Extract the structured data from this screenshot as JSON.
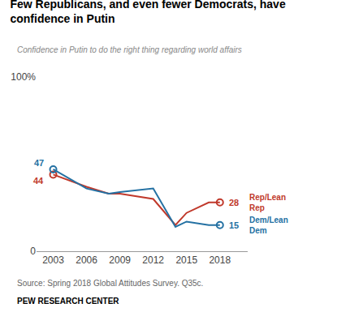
{
  "chart_data": {
    "type": "line",
    "title": "Few Republicans, and even fewer Democrats, have\nconfidence in Putin",
    "subtitle": "Confidence in Putin to do the right thing regarding world affairs",
    "source": "Source: Spring 2018 Global Attitudes Survey. Q35c.",
    "footer": "PEW RESEARCH CENTER",
    "x": [
      2003,
      2006,
      2008,
      2009,
      2012,
      2014,
      2015,
      2017,
      2018
    ],
    "series": [
      {
        "name": "Rep/Lean\nRep",
        "color": "#C0392B",
        "marker": "circle-open",
        "values": [
          44,
          37,
          33,
          33,
          30,
          15,
          22,
          28,
          28
        ]
      },
      {
        "name": "Dem/Lean\nDem",
        "color": "#2471A3",
        "marker": "circle-open",
        "values": [
          47,
          36,
          33,
          34,
          36,
          14,
          17,
          15,
          15
        ]
      }
    ],
    "annotations": [
      {
        "text": "47",
        "series": "Dem/Lean\nDem",
        "x": 2003,
        "y": 47
      },
      {
        "text": "44",
        "series": "Rep/Lean\nRep",
        "x": 2003,
        "y": 44
      },
      {
        "text": "28",
        "series": "Rep/Lean\nRep",
        "x": 2018,
        "y": 28
      },
      {
        "text": "15",
        "series": "Dem/Lean\nDem",
        "x": 2018,
        "y": 15
      }
    ],
    "xlim": [
      2001.5,
      2020.5
    ],
    "xticks": [
      2003,
      2006,
      2009,
      2012,
      2015,
      2018
    ],
    "ylim": [
      0,
      100
    ],
    "yticks": [
      0,
      {
        "value": 100,
        "label": "100%"
      }
    ],
    "grid": false
  }
}
